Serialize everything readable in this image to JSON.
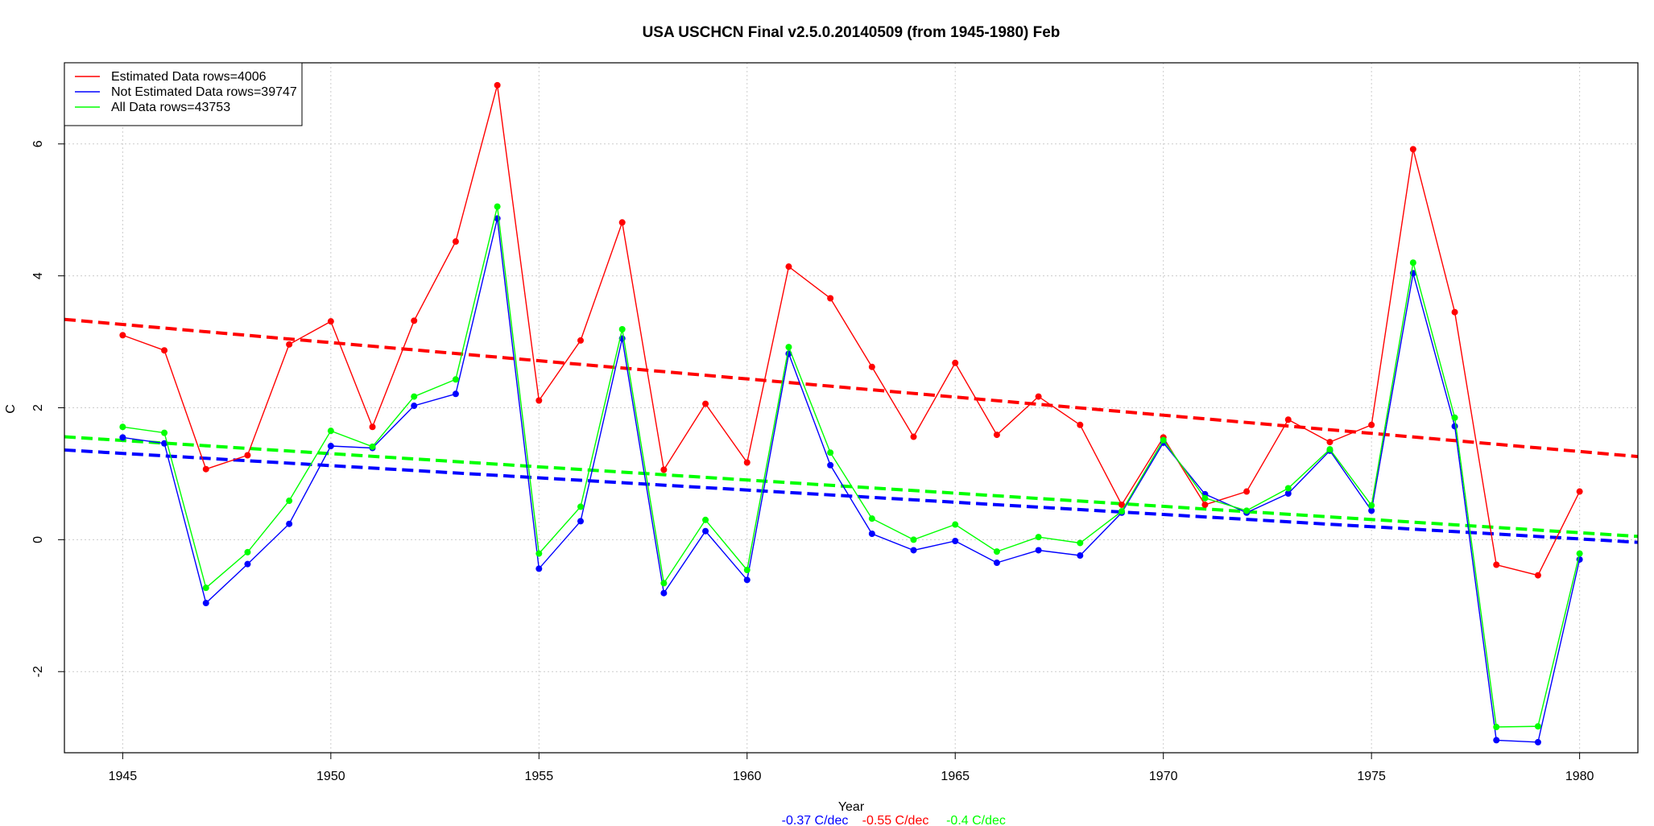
{
  "chart_data": {
    "type": "line",
    "title": "USA USCHCN Final v2.5.0.20140509 (from 1945-1980) Feb",
    "xlabel": "Year",
    "ylabel": "C",
    "xlim": [
      1943.6,
      1981.4
    ],
    "ylim": [
      -3.23,
      7.23
    ],
    "xticks": [
      1945,
      1950,
      1955,
      1960,
      1965,
      1970,
      1975,
      1980
    ],
    "yticks": [
      -2,
      0,
      2,
      4,
      6
    ],
    "grid": true,
    "legend_position": "top-left",
    "x": [
      1945,
      1946,
      1947,
      1948,
      1949,
      1950,
      1951,
      1952,
      1953,
      1954,
      1955,
      1956,
      1957,
      1958,
      1959,
      1960,
      1961,
      1962,
      1963,
      1964,
      1965,
      1966,
      1967,
      1968,
      1969,
      1970,
      1971,
      1972,
      1973,
      1974,
      1975,
      1976,
      1977,
      1978,
      1979,
      1980
    ],
    "series": [
      {
        "name": "Estimated Data rows=4006",
        "color": "#ff0000",
        "values": [
          3.1,
          2.87,
          1.07,
          1.28,
          2.96,
          3.31,
          1.71,
          3.32,
          4.52,
          6.89,
          2.11,
          3.02,
          4.81,
          1.06,
          2.06,
          1.17,
          4.14,
          3.66,
          2.62,
          1.56,
          2.68,
          1.59,
          2.17,
          1.74,
          0.53,
          1.55,
          0.53,
          0.73,
          1.82,
          1.48,
          1.74,
          5.92,
          3.45,
          -0.38,
          -0.54,
          0.73
        ],
        "trend": {
          "label": "-0.55 C/dec",
          "start": [
            1943.6,
            3.34
          ],
          "end": [
            1981.4,
            1.26
          ]
        }
      },
      {
        "name": "Not Estimated Data rows=39747",
        "color": "#0000ff",
        "values": [
          1.55,
          1.46,
          -0.96,
          -0.37,
          0.24,
          1.42,
          1.39,
          2.03,
          2.21,
          4.87,
          -0.44,
          0.28,
          3.05,
          -0.81,
          0.13,
          -0.61,
          2.82,
          1.13,
          0.09,
          -0.16,
          -0.02,
          -0.35,
          -0.16,
          -0.24,
          0.41,
          1.47,
          0.69,
          0.41,
          0.7,
          1.35,
          0.44,
          4.04,
          1.72,
          -3.04,
          -3.07,
          -0.3
        ],
        "trend": {
          "label": "-0.37 C/dec",
          "start": [
            1943.6,
            1.36
          ],
          "end": [
            1981.4,
            -0.04
          ]
        }
      },
      {
        "name": "All Data rows=43753",
        "color": "#00ff00",
        "values": [
          1.71,
          1.62,
          -0.73,
          -0.19,
          0.59,
          1.65,
          1.41,
          2.17,
          2.43,
          5.05,
          -0.21,
          0.5,
          3.19,
          -0.66,
          0.3,
          -0.46,
          2.92,
          1.32,
          0.32,
          0.0,
          0.23,
          -0.18,
          0.04,
          -0.05,
          0.43,
          1.51,
          0.63,
          0.44,
          0.78,
          1.37,
          0.52,
          4.2,
          1.85,
          -2.84,
          -2.83,
          -0.21
        ],
        "trend": {
          "label": "-0.4 C/dec",
          "start": [
            1943.6,
            1.56
          ],
          "end": [
            1981.4,
            0.05
          ]
        }
      }
    ]
  }
}
